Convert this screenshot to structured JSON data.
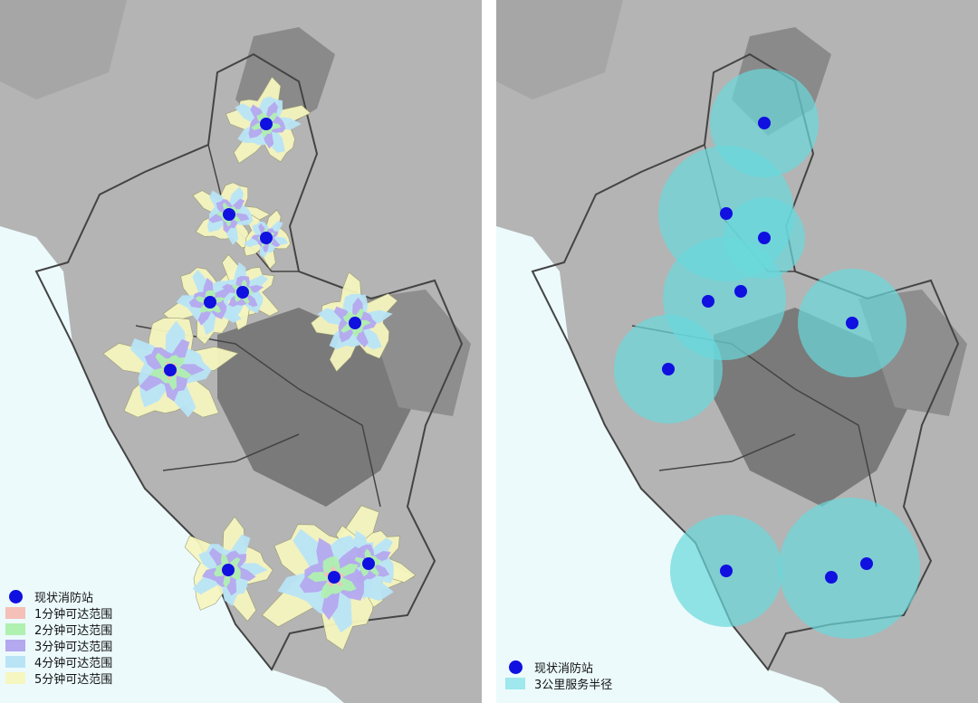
{
  "left_map": {
    "legend": [
      {
        "label": "现状消防站",
        "kind": "dot",
        "color": "#1010e0"
      },
      {
        "label": "1分钟可达范围",
        "kind": "swatch",
        "color": "#f4c0b8"
      },
      {
        "label": "2分钟可达范围",
        "kind": "swatch",
        "color": "#b0f0b0"
      },
      {
        "label": "3分钟可达范围",
        "kind": "swatch",
        "color": "#b4a8ee"
      },
      {
        "label": "4分钟可达范围",
        "kind": "swatch",
        "color": "#b8e4f6"
      },
      {
        "label": "5分钟可达范围",
        "kind": "swatch",
        "color": "#f6f6c0"
      }
    ]
  },
  "right_map": {
    "legend": [
      {
        "label": "现状消防站",
        "kind": "dot",
        "color": "#1010e0"
      },
      {
        "label": "3公里服务半径",
        "kind": "swatch",
        "color": "#9ee8ee"
      }
    ]
  },
  "colors": {
    "sea": "#ecfafc",
    "land": "#b4b4b4",
    "station": "#1010e0",
    "service": "#6ad8dc"
  }
}
